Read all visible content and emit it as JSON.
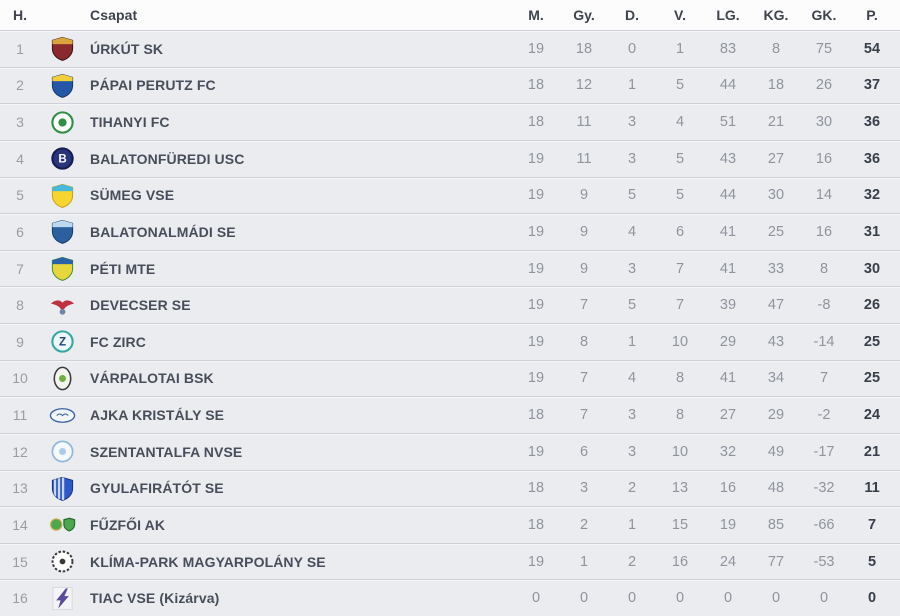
{
  "colors": {
    "row_background": "#ebecf0",
    "header_background": "#fcfcfd",
    "separator": "#cdced6",
    "header_text": "#3e434c",
    "team_text": "#474e5a",
    "stat_text": "#8f949d",
    "points_text": "#383f4a",
    "position_text": "#9b9ba3"
  },
  "table": {
    "columns": [
      {
        "id": "position",
        "label": "H."
      },
      {
        "id": "logo",
        "label": ""
      },
      {
        "id": "team",
        "label": "Csapat"
      },
      {
        "id": "played",
        "label": "M."
      },
      {
        "id": "wins",
        "label": "Gy."
      },
      {
        "id": "draws",
        "label": "D."
      },
      {
        "id": "losses",
        "label": "V."
      },
      {
        "id": "goals_for",
        "label": "LG."
      },
      {
        "id": "goals_against",
        "label": "KG."
      },
      {
        "id": "goal_diff",
        "label": "GK."
      },
      {
        "id": "points",
        "label": "P."
      }
    ],
    "rows": [
      {
        "position": "1",
        "team": "ÚRKÚT SK",
        "stats": [
          "19",
          "18",
          "0",
          "1",
          "83",
          "8",
          "75",
          "54"
        ],
        "logo": {
          "name": "urkut-sk-crest",
          "type": "shield",
          "colors": [
            "#8b2a2d",
            "#d9a43c",
            "#351012"
          ]
        }
      },
      {
        "position": "2",
        "team": "PÁPAI PERUTZ FC",
        "stats": [
          "18",
          "12",
          "1",
          "5",
          "44",
          "18",
          "26",
          "37"
        ],
        "logo": {
          "name": "papai-perutz-fc-crest",
          "type": "shield",
          "colors": [
            "#2457a8",
            "#f2cf3a",
            "#17335f"
          ]
        }
      },
      {
        "position": "3",
        "team": "TIHANYI FC",
        "stats": [
          "18",
          "11",
          "3",
          "4",
          "51",
          "21",
          "30",
          "36"
        ],
        "logo": {
          "name": "tihanyi-fc-crest",
          "type": "ring",
          "colors": [
            "#ffffff",
            "#2e8f44"
          ]
        }
      },
      {
        "position": "4",
        "team": "BALATONFÜREDI USC",
        "stats": [
          "19",
          "11",
          "3",
          "5",
          "43",
          "27",
          "16",
          "36"
        ],
        "logo": {
          "name": "balatonfuredi-usc-crest",
          "type": "letter",
          "letter": "B",
          "colors": [
            "#2a3580",
            "#161d4f",
            "#ffffff"
          ]
        }
      },
      {
        "position": "5",
        "team": "SÜMEG VSE",
        "stats": [
          "19",
          "9",
          "5",
          "5",
          "44",
          "30",
          "14",
          "32"
        ],
        "logo": {
          "name": "sumeg-vse-crest",
          "type": "shield",
          "colors": [
            "#f6d62e",
            "#49b8d9",
            "#c2a019"
          ]
        }
      },
      {
        "position": "6",
        "team": "BALATONALMÁDI SE",
        "stats": [
          "19",
          "9",
          "4",
          "6",
          "41",
          "25",
          "16",
          "31"
        ],
        "logo": {
          "name": "balatonalmadi-se-crest",
          "type": "shield",
          "colors": [
            "#2c5f9e",
            "#bcd9ef",
            "#173a66"
          ]
        }
      },
      {
        "position": "7",
        "team": "PÉTI MTE",
        "stats": [
          "19",
          "9",
          "3",
          "7",
          "41",
          "33",
          "8",
          "30"
        ],
        "logo": {
          "name": "peti-mte-crest",
          "type": "shield",
          "colors": [
            "#e6d83a",
            "#2a62a8",
            "#3f8a3a"
          ]
        }
      },
      {
        "position": "8",
        "team": "DEVECSER SE",
        "stats": [
          "19",
          "7",
          "5",
          "7",
          "39",
          "47",
          "-8",
          "26"
        ],
        "logo": {
          "name": "devecser-se-crest",
          "type": "bird",
          "colors": [
            "#bf3240",
            "#7286a8"
          ]
        }
      },
      {
        "position": "9",
        "team": "FC ZIRC",
        "stats": [
          "19",
          "8",
          "1",
          "10",
          "29",
          "43",
          "-14",
          "25"
        ],
        "logo": {
          "name": "fc-zirc-crest",
          "type": "letter",
          "letter": "Z",
          "colors": [
            "#eef7f9",
            "#35a8a0",
            "#27407a"
          ]
        }
      },
      {
        "position": "10",
        "team": "VÁRPALOTAI BSK",
        "stats": [
          "19",
          "7",
          "4",
          "8",
          "41",
          "34",
          "7",
          "25"
        ],
        "logo": {
          "name": "varpalotai-bsk-crest",
          "type": "oval",
          "colors": [
            "#f4f4ef",
            "#3a3a3a",
            "#6fae3f"
          ]
        }
      },
      {
        "position": "11",
        "team": "AJKA KRISTÁLY SE",
        "stats": [
          "18",
          "7",
          "3",
          "8",
          "27",
          "29",
          "-2",
          "24"
        ],
        "logo": {
          "name": "ajka-kristaly-se-crest",
          "type": "oval-wide",
          "colors": [
            "#f2f5f9",
            "#3a62a8"
          ]
        }
      },
      {
        "position": "12",
        "team": "SZENTANTALFA NVSE",
        "stats": [
          "19",
          "6",
          "3",
          "10",
          "32",
          "49",
          "-17",
          "21"
        ],
        "logo": {
          "name": "szentantalfa-nvse-crest",
          "type": "circle",
          "colors": [
            "#f4f9fd",
            "#8fb8dc"
          ]
        }
      },
      {
        "position": "13",
        "team": "GYULAFIRÁTÓT SE",
        "stats": [
          "18",
          "3",
          "2",
          "13",
          "16",
          "48",
          "-32",
          "11"
        ],
        "logo": {
          "name": "gyulafiratot-se-crest",
          "type": "shield-striped",
          "colors": [
            "#2b59c9",
            "#c9d6f2",
            "#15307e"
          ]
        }
      },
      {
        "position": "14",
        "team": "FŰZFŐI AK",
        "stats": [
          "18",
          "2",
          "1",
          "15",
          "19",
          "85",
          "-66",
          "7"
        ],
        "logo": {
          "name": "fuzfoi-ak-crest",
          "type": "double",
          "colors": [
            "#4aa94a",
            "#2a6b33"
          ]
        }
      },
      {
        "position": "15",
        "team": "KLÍMA-PARK MAGYARPOLÁNY SE",
        "stats": [
          "19",
          "1",
          "2",
          "16",
          "24",
          "77",
          "-53",
          "5"
        ],
        "logo": {
          "name": "klima-park-magyarpolany-se-crest",
          "type": "wreath",
          "colors": [
            "#ffffff",
            "#3a3a3a"
          ]
        }
      },
      {
        "position": "16",
        "team": "TIAC VSE (Kizárva)",
        "stats": [
          "0",
          "0",
          "0",
          "0",
          "0",
          "0",
          "0",
          "0"
        ],
        "logo": {
          "name": "tiac-vse-crest",
          "type": "flag",
          "colors": [
            "#f4f4f8",
            "#584a9c"
          ]
        }
      }
    ]
  }
}
